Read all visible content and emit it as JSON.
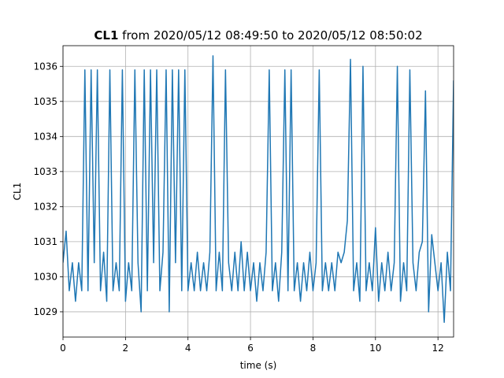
{
  "chart_data": {
    "type": "line",
    "title_bold": "CL1",
    "title": "from 2020/05/12 08:49:50 to 2020/05/12 08:50:02",
    "x_label": "time (s)",
    "y_label": "CL1",
    "xlim": [
      0,
      12.5
    ],
    "ylim": [
      1028.28,
      1036.59
    ],
    "xticks": [
      0,
      2,
      4,
      6,
      8,
      10,
      12
    ],
    "yticks": [
      1029,
      1030,
      1031,
      1032,
      1033,
      1034,
      1035,
      1036
    ],
    "grid": true,
    "x": [
      0,
      0.1,
      0.2,
      0.3,
      0.4,
      0.5,
      0.6,
      0.7,
      0.8,
      0.9,
      1,
      1.1,
      1.2,
      1.3,
      1.4,
      1.5,
      1.6,
      1.7,
      1.8,
      1.9,
      2,
      2.1,
      2.2,
      2.3,
      2.4,
      2.5,
      2.6,
      2.7,
      2.8,
      2.9,
      3,
      3.1,
      3.2,
      3.3,
      3.4,
      3.5,
      3.6,
      3.7,
      3.8,
      3.9,
      4,
      4.1,
      4.2,
      4.3,
      4.4,
      4.5,
      4.6,
      4.7,
      4.8,
      4.9,
      5,
      5.1,
      5.2,
      5.3,
      5.4,
      5.5,
      5.6,
      5.7,
      5.8,
      5.9,
      6,
      6.1,
      6.2,
      6.3,
      6.4,
      6.5,
      6.6,
      6.7,
      6.8,
      6.9,
      7,
      7.1,
      7.2,
      7.3,
      7.4,
      7.5,
      7.6,
      7.7,
      7.8,
      7.9,
      8,
      8.1,
      8.2,
      8.3,
      8.4,
      8.5,
      8.6,
      8.7,
      8.8,
      8.9,
      9,
      9.1,
      9.2,
      9.3,
      9.4,
      9.5,
      9.6,
      9.7,
      9.8,
      9.9,
      10,
      10.1,
      10.2,
      10.3,
      10.4,
      10.5,
      10.6,
      10.7,
      10.8,
      10.9,
      11,
      11.1,
      11.2,
      11.3,
      11.4,
      11.5,
      11.6,
      11.7,
      11.8,
      11.9,
      12,
      12.1,
      12.2,
      12.3,
      12.4,
      12.5
    ],
    "series": [
      {
        "name": "CL1",
        "color": "#1f77b4",
        "values": [
          1030.4,
          1031.3,
          1029.6,
          1030.4,
          1029.3,
          1030.4,
          1029.6,
          1035.9,
          1029.6,
          1035.9,
          1030.4,
          1035.9,
          1029.6,
          1030.7,
          1029.3,
          1035.9,
          1029.6,
          1030.4,
          1029.6,
          1035.9,
          1029.3,
          1030.4,
          1029.6,
          1035.9,
          1030.4,
          1029.0,
          1035.9,
          1029.6,
          1035.9,
          1030.4,
          1035.9,
          1029.6,
          1030.7,
          1035.9,
          1029.0,
          1035.9,
          1030.4,
          1035.9,
          1029.6,
          1035.9,
          1029.6,
          1030.4,
          1029.6,
          1030.7,
          1029.6,
          1030.4,
          1029.6,
          1030.7,
          1036.3,
          1029.6,
          1030.7,
          1029.6,
          1035.9,
          1030.4,
          1029.6,
          1030.7,
          1029.6,
          1031.0,
          1029.6,
          1030.7,
          1029.6,
          1030.4,
          1029.3,
          1030.4,
          1029.6,
          1030.7,
          1035.9,
          1029.6,
          1030.4,
          1029.3,
          1030.7,
          1035.9,
          1029.6,
          1035.9,
          1029.6,
          1030.4,
          1029.3,
          1030.4,
          1029.6,
          1030.7,
          1029.6,
          1030.4,
          1035.9,
          1029.6,
          1030.4,
          1029.6,
          1030.4,
          1029.6,
          1030.7,
          1030.4,
          1030.7,
          1031.6,
          1036.2,
          1029.6,
          1030.4,
          1029.3,
          1036.0,
          1029.6,
          1030.4,
          1029.6,
          1031.4,
          1029.3,
          1030.4,
          1029.6,
          1030.7,
          1029.6,
          1030.4,
          1036.0,
          1029.3,
          1030.4,
          1029.6,
          1035.9,
          1030.4,
          1029.6,
          1030.7,
          1031.0,
          1035.3,
          1029.0,
          1031.2,
          1030.4,
          1029.6,
          1030.4,
          1028.7,
          1030.7,
          1029.6,
          1035.6
        ]
      }
    ]
  }
}
